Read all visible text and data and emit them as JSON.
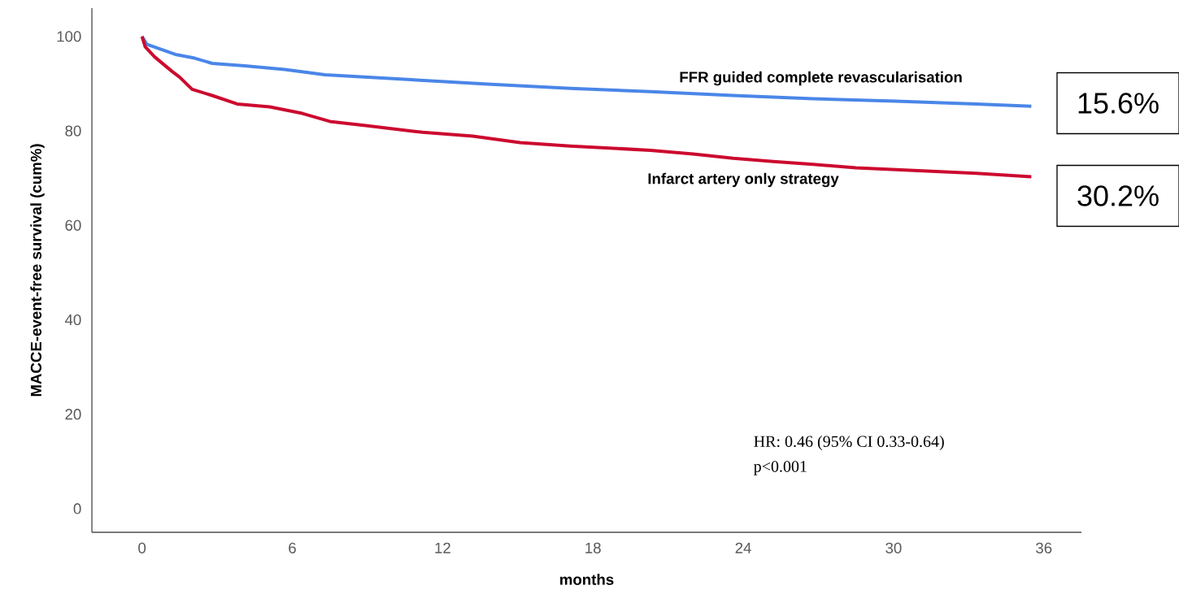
{
  "chart_data": {
    "type": "line",
    "xlabel": "months",
    "ylabel": "MACCE-event-free survival (cum%)",
    "xlim": [
      -2,
      37.5
    ],
    "ylim": [
      -5,
      106
    ],
    "xticks": [
      0,
      6,
      12,
      18,
      24,
      30,
      36
    ],
    "yticks": [
      0,
      20,
      40,
      60,
      80,
      100
    ],
    "grid": false,
    "legend": false,
    "marker": "none",
    "line_style": "solid",
    "series": [
      {
        "name": "FFR guided complete revascularisation",
        "color": "#4a86e8",
        "x": [
          0,
          0.2,
          1.33,
          2.1,
          2.8,
          4.1,
          5.7,
          7.3,
          10.6,
          13.8,
          17.1,
          20.3,
          23.6,
          26.8,
          30.1,
          33.3,
          35.5
        ],
        "values": [
          100,
          98.3,
          96.2,
          95.4,
          94.3,
          93.8,
          93.0,
          91.9,
          90.9,
          89.9,
          89.0,
          88.3,
          87.5,
          86.8,
          86.3,
          85.7,
          85.2
        ]
      },
      {
        "name": "Infarct artery only strategy",
        "color": "#cc0a2f",
        "x": [
          0,
          0.13,
          0.5,
          1.2,
          1.5,
          2.0,
          2.8,
          3.8,
          5.1,
          6.4,
          7.5,
          9.0,
          11.2,
          13.2,
          15.1,
          17.1,
          20.3,
          22.0,
          23.6,
          25.2,
          26.8,
          28.5,
          30.1,
          33.3,
          35.5
        ],
        "values": [
          100,
          97.8,
          95.7,
          92.6,
          91.4,
          88.8,
          87.5,
          85.7,
          85.1,
          83.7,
          82.0,
          81.1,
          79.7,
          78.9,
          77.5,
          76.8,
          75.9,
          75.1,
          74.2,
          73.5,
          72.9,
          72.2,
          71.8,
          71.0,
          70.3
        ]
      }
    ],
    "annotations": [
      "15.6%",
      "30.2%",
      "HR: 0.46 (95% CI 0.33-0.64)",
      "p<0.001"
    ]
  }
}
